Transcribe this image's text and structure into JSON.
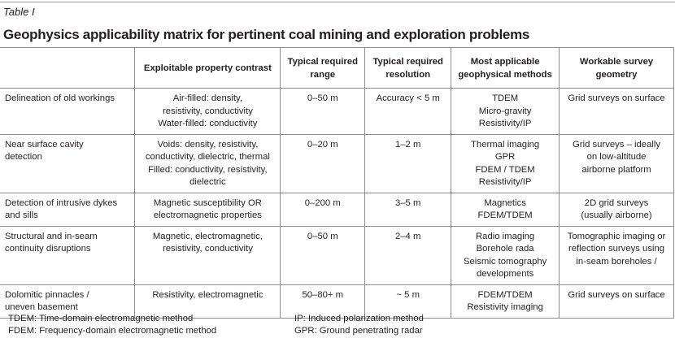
{
  "label": "Table I",
  "title": "Geophysics applicability matrix for pertinent coal mining and exploration problems",
  "headers": [
    "",
    "Exploitable property contrast",
    "Typical required range",
    "Typical required resolution",
    "Most applicable geophysical methods",
    "Workable survey geometry"
  ],
  "rows": [
    {
      "problem": "Delineation of old workings",
      "contrast": [
        "Air-filled: density,",
        "resistivity, conductivity",
        "Water-filled: conductivity"
      ],
      "range": "0–50 m",
      "resolution": "Accuracy < 5 m",
      "methods": [
        "TDEM",
        "Micro-gravity",
        "Resistivity/IP"
      ],
      "geometry": [
        "Grid surveys on surface"
      ]
    },
    {
      "problem": "Near surface cavity detection",
      "contrast": [
        "Voids: density, resistivity,",
        "conductivity, dielectric, thermal",
        "Filled: conductivity, resistivity,",
        "dielectric"
      ],
      "range": "0–20 m",
      "resolution": "1–2 m",
      "methods": [
        "Thermal imaging",
        "GPR",
        "FDEM / TDEM",
        "Resistivity/IP"
      ],
      "geometry": [
        "Grid surveys – ideally",
        "on low-altitude",
        "airborne platform"
      ]
    },
    {
      "problem": "Detection of intrusive dykes and sills",
      "contrast": [
        "Magnetic susceptibility OR",
        "electromagnetic properties"
      ],
      "range": "0–200 m",
      "resolution": "3–5 m",
      "methods": [
        "Magnetics",
        "FDEM/TDEM"
      ],
      "geometry": [
        "2D grid surveys",
        "(usually airborne)"
      ]
    },
    {
      "problem": "Structural and in-seam continuity disruptions",
      "contrast": [
        "Magnetic, electromagnetic,",
        "resistivity, conductivity"
      ],
      "range": "0–50 m",
      "resolution": "2–4 m",
      "methods": [
        "Radio imaging",
        "Borehole rada",
        "Seismic tomography",
        "developments"
      ],
      "geometry": [
        "Tomographic imaging or",
        "reflection surveys using",
        "in-seam boreholes /"
      ]
    },
    {
      "problem": "Dolomitic pinnacles / uneven basement",
      "contrast": [
        "Resistivity, electromagnetic"
      ],
      "range": "50–80+ m",
      "resolution": "~ 5 m",
      "methods": [
        "FDEM/TDEM",
        "Resistivity imaging"
      ],
      "geometry": [
        "Grid surveys on surface"
      ]
    }
  ],
  "footnotes": {
    "tdem": "TDEM: Time-domain electromagnetic method",
    "fdem": "FDEM: Frequency-domain electromagnetic method",
    "ip": "IP: Induced polarization method",
    "gpr": "GPR: Ground penetrating radar"
  }
}
